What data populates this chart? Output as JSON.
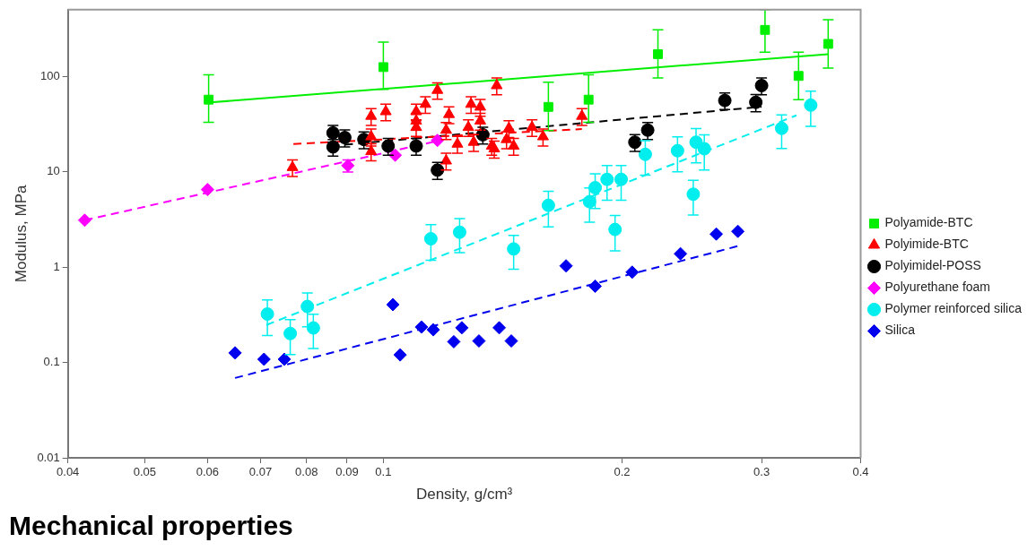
{
  "chart_data": {
    "type": "scatter",
    "title": "Mechanical properties",
    "xlabel": "Density, g/cm³",
    "ylabel": "Modulus, MPa",
    "log": "xy",
    "grid": false,
    "legend": "right",
    "xlim": [
      0.04,
      0.4
    ],
    "xticks": [
      0.04,
      0.05,
      0.06,
      0.07,
      0.08,
      0.09,
      0.1,
      0.2,
      0.3,
      0.4
    ],
    "ylim": [
      0.01,
      500
    ],
    "yticks": [
      0.01,
      0.1,
      1,
      10,
      100
    ],
    "series": [
      {
        "name": "Polyamide-BTC",
        "type": "scatter",
        "marker": "square",
        "color": "#00ee00",
        "x": [
          0.0602,
          0.1,
          0.1615,
          0.1815,
          0.222,
          0.303,
          0.334,
          0.364
        ],
        "values": [
          57,
          125,
          47.8,
          57,
          171,
          307,
          101,
          219
        ],
        "errors": [
          [
            33,
            104
          ],
          [
            73,
            229
          ],
          [
            27,
            87
          ],
          [
            33,
            104
          ],
          [
            96,
            307
          ],
          [
            179,
            500
          ],
          [
            57,
            179
          ],
          [
            122,
            393
          ]
        ]
      },
      {
        "name": "Polyimide-BTC",
        "type": "scatter",
        "marker": "triangle",
        "color": "#ff0000",
        "x": [
          0.0768,
          0.0965,
          0.1007,
          0.0965,
          0.0965,
          0.11,
          0.113,
          0.11,
          0.117,
          0.121,
          0.12,
          0.12,
          0.11,
          0.129,
          0.1325,
          0.139,
          0.1325,
          0.128,
          0.124,
          0.137,
          0.143,
          0.144,
          0.154,
          0.159,
          0.178,
          0.138,
          0.146,
          0.13
        ],
        "values": [
          11.1,
          38.2,
          42.7,
          23.3,
          16.3,
          42.7,
          51,
          29.2,
          71.5,
          39.9,
          27.3,
          13,
          34.1,
          51,
          47.7,
          80,
          34.1,
          29.2,
          19.5,
          18.6,
          21.8,
          28.5,
          29.2,
          23.3,
          38.2,
          17.4,
          18.6,
          20.4
        ],
        "errors": [
          2.2,
          7.6,
          8.5,
          4.7,
          3.3,
          8.5,
          10,
          5.8,
          14,
          8,
          5.5,
          2.6,
          6.8,
          10,
          9.5,
          16,
          6.8,
          5.8,
          3.9,
          3.7,
          4.4,
          5.7,
          5.8,
          4.7,
          7.6,
          3.5,
          3.7,
          4.1
        ]
      },
      {
        "name": "Polyimidel-POSS",
        "type": "scatter",
        "marker": "circle",
        "color": "#000000",
        "x": [
          0.0864,
          0.0864,
          0.0894,
          0.0945,
          0.1014,
          0.11,
          0.117,
          0.1335,
          0.2076,
          0.2155,
          0.2696,
          0.295,
          0.3
        ],
        "values": [
          25.5,
          18.2,
          22.8,
          21.8,
          18.6,
          18.6,
          10.4,
          24.4,
          20.4,
          27.3,
          55.8,
          53.4,
          80
        ],
        "errors": [
          5.1,
          3.6,
          4.6,
          4.4,
          3.7,
          3.7,
          2.1,
          4.9,
          4.1,
          5.5,
          11,
          11,
          16
        ]
      },
      {
        "name": "Polyurethane foam",
        "type": "scatter",
        "marker": "diamond",
        "color": "#ff00ff",
        "x": [
          0.042,
          0.06,
          0.0902,
          0.1035,
          0.117
        ],
        "values": [
          3.1,
          6.5,
          11.6,
          14.9,
          21.3
        ],
        "errors": [
          null,
          null,
          1.7,
          null,
          null
        ]
      },
      {
        "name": "Polymer reinforced silica",
        "type": "scatter",
        "marker": "circle",
        "color": "#00eeee",
        "x": [
          0.0714,
          0.0763,
          0.0802,
          0.0816,
          0.1148,
          0.1248,
          0.146,
          0.1615,
          0.182,
          0.185,
          0.1915,
          0.1995,
          0.196,
          0.214,
          0.235,
          0.246,
          0.248,
          0.254,
          0.318,
          0.346
        ],
        "values": [
          0.322,
          0.201,
          0.386,
          0.23,
          1.98,
          2.32,
          1.55,
          4.44,
          4.85,
          6.8,
          8.31,
          8.31,
          2.48,
          15.2,
          16.6,
          5.81,
          20.4,
          17.4,
          28.5,
          49.9
        ],
        "errors": [
          0.13,
          0.08,
          0.15,
          0.09,
          0.8,
          0.9,
          0.6,
          1.8,
          1.9,
          2.7,
          3.3,
          3.3,
          1,
          6,
          6.6,
          2.3,
          8,
          7,
          11,
          20
        ]
      },
      {
        "name": "Silica",
        "type": "scatter",
        "marker": "diamond",
        "color": "#0000ee",
        "x": [
          0.065,
          0.0707,
          0.075,
          0.1028,
          0.105,
          0.1117,
          0.1156,
          0.1227,
          0.1256,
          0.132,
          0.14,
          0.145,
          0.17,
          0.185,
          0.206,
          0.237,
          0.263,
          0.28
        ],
        "values": [
          0.126,
          0.108,
          0.108,
          0.404,
          0.12,
          0.235,
          0.22,
          0.165,
          0.231,
          0.168,
          0.231,
          0.168,
          1.03,
          0.63,
          0.884,
          1.38,
          2.22,
          2.37
        ]
      },
      {
        "type": "line",
        "line_style": "solid",
        "color": "#00ee00",
        "x": [
          0.06,
          0.364
        ],
        "values": [
          53,
          171
        ]
      },
      {
        "type": "line",
        "line_style": "dashed",
        "color": "#ff0000",
        "x": [
          0.077,
          0.178
        ],
        "values": [
          19.5,
          28
        ]
      },
      {
        "type": "line",
        "line_style": "dashed",
        "color": "#000000",
        "x": [
          0.086,
          0.3
        ],
        "values": [
          18.6,
          48
        ]
      },
      {
        "type": "line",
        "line_style": "dashed",
        "color": "#ff00ff",
        "x": [
          0.042,
          0.117
        ],
        "values": [
          3.1,
          21
        ]
      },
      {
        "type": "line",
        "line_style": "dashed",
        "color": "#00eeee",
        "x": [
          0.0712,
          0.332
        ],
        "values": [
          0.247,
          39
        ]
      },
      {
        "type": "line",
        "line_style": "dashed",
        "color": "#0000ee",
        "x": [
          0.065,
          0.28
        ],
        "values": [
          0.0687,
          1.66
        ]
      }
    ]
  }
}
